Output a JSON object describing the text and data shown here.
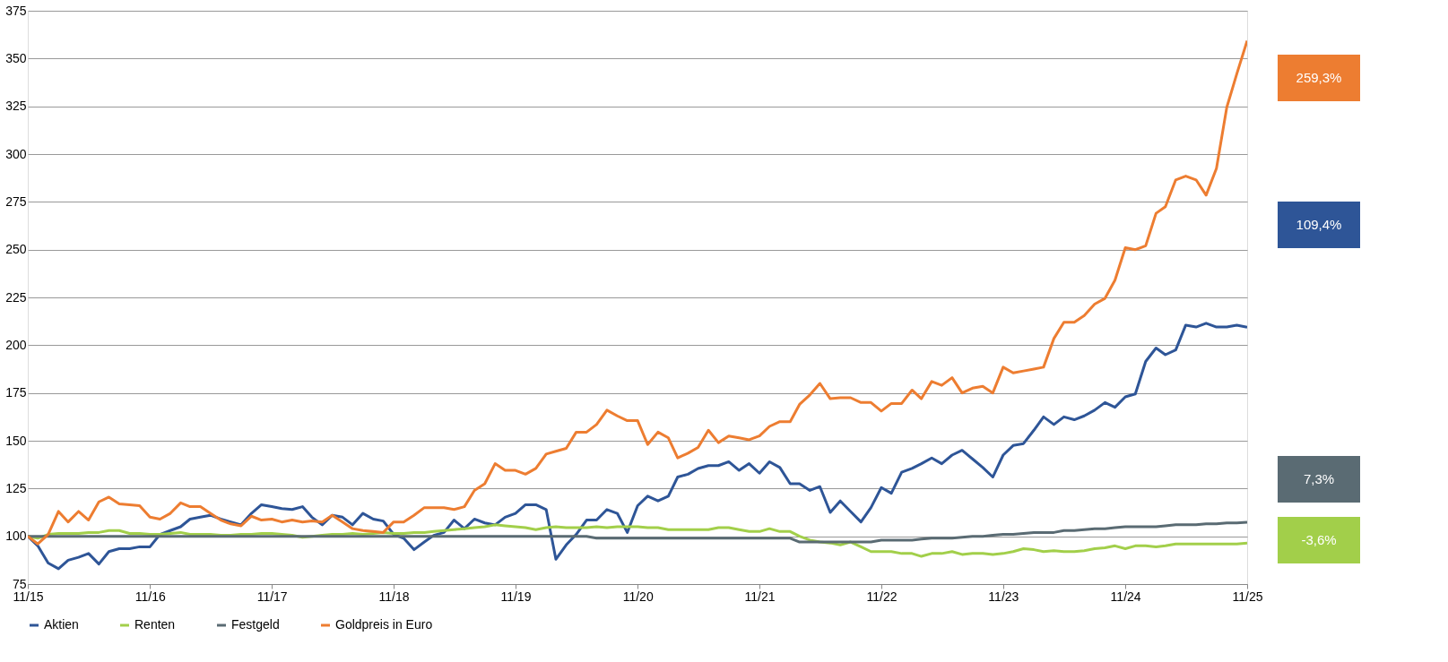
{
  "chart_data": {
    "type": "line",
    "x": [
      "2015-11",
      "2015-12",
      "2016-01",
      "2016-02",
      "2016-03",
      "2016-04",
      "2016-05",
      "2016-06",
      "2016-07",
      "2016-08",
      "2016-09",
      "2016-10",
      "2016-11",
      "2016-12",
      "2017-01",
      "2017-02",
      "2017-03",
      "2017-04",
      "2017-05",
      "2017-06",
      "2017-07",
      "2017-08",
      "2017-09",
      "2017-10",
      "2017-11",
      "2017-12",
      "2018-01",
      "2018-02",
      "2018-03",
      "2018-04",
      "2018-05",
      "2018-06",
      "2018-07",
      "2018-08",
      "2018-09",
      "2018-10",
      "2018-11",
      "2018-12",
      "2019-01",
      "2019-02",
      "2019-03",
      "2019-04",
      "2019-05",
      "2019-06",
      "2019-07",
      "2019-08",
      "2019-09",
      "2019-10",
      "2019-11",
      "2019-12",
      "2020-01",
      "2020-02",
      "2020-03",
      "2020-04",
      "2020-05",
      "2020-06",
      "2020-07",
      "2020-08",
      "2020-09",
      "2020-10",
      "2020-11",
      "2020-12",
      "2021-01",
      "2021-02",
      "2021-03",
      "2021-04",
      "2021-05",
      "2021-06",
      "2021-07",
      "2021-08",
      "2021-09",
      "2021-10",
      "2021-11",
      "2021-12",
      "2022-01",
      "2022-02",
      "2022-03",
      "2022-04",
      "2022-05",
      "2022-06",
      "2022-07",
      "2022-08",
      "2022-09",
      "2022-10",
      "2022-11",
      "2022-12",
      "2023-01",
      "2023-02",
      "2023-03",
      "2023-04",
      "2023-05",
      "2023-06",
      "2023-07",
      "2023-08",
      "2023-09",
      "2023-10",
      "2023-11",
      "2023-12",
      "2024-01",
      "2024-02",
      "2024-03",
      "2024-04",
      "2024-05",
      "2024-06",
      "2024-07",
      "2024-08",
      "2024-09",
      "2024-10",
      "2024-11",
      "2024-12",
      "2025-01",
      "2025-02",
      "2025-03",
      "2025-04",
      "2025-05",
      "2025-06",
      "2025-07",
      "2025-08",
      "2025-09",
      "2025-10",
      "2025-11"
    ],
    "series": [
      {
        "name": "Aktien",
        "color": "#2e5597",
        "values": [
          100,
          95,
          86,
          83,
          87.5,
          89,
          91,
          85.5,
          92,
          93.5,
          93.5,
          94.5,
          94.5,
          101,
          103,
          105,
          109,
          110,
          111,
          109,
          107.5,
          106,
          112,
          116.5,
          115.5,
          114.5,
          114,
          115.5,
          110,
          106,
          111,
          110,
          106,
          112,
          109,
          108,
          101,
          99,
          93,
          97,
          100.5,
          102,
          108.5,
          104,
          109,
          107,
          106,
          110,
          112,
          116.5,
          116.5,
          114,
          88,
          95.5,
          101,
          108.5,
          108.5,
          114,
          112,
          102,
          116,
          121,
          118.5,
          121,
          131,
          132.5,
          135.5,
          137,
          137,
          139,
          134.5,
          138,
          133,
          139,
          136,
          127.5,
          127.5,
          124,
          126,
          112.5,
          118.5,
          113,
          107.5,
          115,
          125.5,
          122.5,
          133.5,
          135.5,
          138,
          141,
          138,
          142.5,
          145,
          140.5,
          136,
          131,
          142.5,
          147.5,
          148.5,
          155.5,
          162.5,
          158.5,
          162.5,
          161,
          163,
          166,
          170,
          167.5,
          173,
          174.5,
          191.5,
          198.5,
          195,
          197.5,
          210.5,
          209.5,
          211.5,
          209.5,
          209.5,
          210.5,
          209.4
        ]
      },
      {
        "name": "Renten",
        "color": "#a2cf4a",
        "values": [
          100,
          99,
          101,
          101.5,
          101.5,
          101.5,
          102,
          102,
          103,
          103,
          101.5,
          101.5,
          101,
          101,
          101.5,
          102,
          101,
          101,
          101,
          100.5,
          100.5,
          101,
          101,
          101.5,
          101.5,
          101,
          100.5,
          99.5,
          100,
          100.5,
          101,
          101,
          101.5,
          101,
          101.5,
          102,
          101.5,
          101.5,
          102,
          102,
          102.5,
          103,
          103.5,
          104,
          104.5,
          105,
          106,
          105.5,
          105,
          104.5,
          103.5,
          104.5,
          105,
          104.5,
          104.5,
          104.5,
          105,
          104.5,
          105,
          105,
          105,
          104.5,
          104.5,
          103.5,
          103.5,
          103.5,
          103.5,
          103.5,
          104.5,
          104.5,
          103.5,
          102.5,
          102.5,
          104,
          102.5,
          102.5,
          100,
          98,
          97,
          96.5,
          95.5,
          97,
          94.5,
          92,
          92,
          92,
          91,
          91,
          89.5,
          91,
          91,
          92,
          90.5,
          91,
          91,
          90.5,
          91,
          92,
          93.5,
          93,
          92,
          92.5,
          92,
          92,
          92.5,
          93.5,
          94,
          95,
          93.5,
          95,
          95,
          94.5,
          95,
          96,
          96,
          96,
          96,
          96,
          96,
          96,
          96.4
        ]
      },
      {
        "name": "Festgeld",
        "color": "#5a6b73",
        "values": [
          100,
          100,
          100,
          100,
          100,
          100,
          100,
          100,
          100,
          100,
          100,
          100,
          100,
          100,
          100,
          100,
          100,
          100,
          100,
          100,
          100,
          100,
          100,
          100,
          100,
          100,
          100,
          100,
          100,
          100,
          100,
          100,
          100,
          100,
          100,
          100,
          100,
          100,
          100,
          100,
          100,
          100,
          100,
          100,
          100,
          100,
          100,
          100,
          100,
          100,
          100,
          100,
          100,
          100,
          100,
          100,
          99,
          99,
          99,
          99,
          99,
          99,
          99,
          99,
          99,
          99,
          99,
          99,
          99,
          99,
          99,
          99,
          99,
          99,
          99,
          99,
          97,
          97,
          97,
          97,
          97,
          97,
          97,
          97,
          98,
          98,
          98,
          98,
          98.5,
          99,
          99,
          99,
          99.5,
          100,
          100,
          100.5,
          101,
          101,
          101.5,
          102,
          102,
          102,
          103,
          103,
          103.5,
          104,
          104,
          104.5,
          105,
          105,
          105,
          105,
          105.5,
          106,
          106,
          106,
          106.5,
          106.5,
          107,
          107,
          107.3
        ]
      },
      {
        "name": "Goldpreis in Euro",
        "color": "#ed7d31",
        "values": [
          100,
          96,
          101,
          113,
          107.5,
          113,
          108.5,
          118,
          120.5,
          117,
          116.5,
          116,
          110,
          109,
          112,
          117.5,
          115.5,
          115.5,
          112,
          108.5,
          106.5,
          105.5,
          110.5,
          108.5,
          109,
          107.5,
          108.5,
          107.5,
          108,
          107.5,
          111,
          107.5,
          104,
          103,
          102.5,
          102,
          107.5,
          107.5,
          111,
          115,
          115,
          115,
          114,
          115.5,
          124,
          127.5,
          138,
          134.5,
          134.5,
          132.5,
          135.5,
          143,
          144.5,
          146,
          154.5,
          154.5,
          158.5,
          166,
          163,
          160.5,
          160.5,
          148,
          154.5,
          151.5,
          141,
          143.5,
          146.5,
          155.5,
          149,
          152.5,
          151.5,
          150.5,
          152.5,
          157.5,
          160,
          160,
          169,
          174,
          180,
          172,
          172.5,
          172.5,
          170,
          170,
          165.5,
          169.5,
          169.5,
          176.5,
          172,
          181,
          179,
          183,
          175,
          177.5,
          178.5,
          175,
          188.5,
          185.5,
          186.5,
          187.5,
          188.5,
          203.5,
          212,
          212,
          215.5,
          221.5,
          224.5,
          234,
          251,
          250,
          252,
          269,
          272.5,
          286.5,
          288.5,
          286.5,
          278.5,
          292.5,
          324.5,
          342,
          359.3
        ]
      }
    ],
    "xlim": [
      "2015-11",
      "2025-11"
    ],
    "xticks": [
      {
        "value": "2015-11",
        "label": "11/15"
      },
      {
        "value": "2016-11",
        "label": "11/16"
      },
      {
        "value": "2017-11",
        "label": "11/17"
      },
      {
        "value": "2018-11",
        "label": "11/18"
      },
      {
        "value": "2019-11",
        "label": "11/19"
      },
      {
        "value": "2020-11",
        "label": "11/20"
      },
      {
        "value": "2021-11",
        "label": "11/21"
      },
      {
        "value": "2022-11",
        "label": "11/22"
      },
      {
        "value": "2023-11",
        "label": "11/23"
      },
      {
        "value": "2024-11",
        "label": "11/24"
      },
      {
        "value": "2025-11",
        "label": "11/25"
      }
    ],
    "ylim": [
      75,
      375
    ],
    "yticks": [
      75,
      100,
      125,
      150,
      175,
      200,
      225,
      250,
      275,
      300,
      325,
      350,
      375
    ],
    "grid": "y",
    "legend": "bottom",
    "line_style": "solid",
    "annotations": [
      "109,4%",
      "-3,6%",
      "7,3%",
      "259,3%"
    ]
  }
}
